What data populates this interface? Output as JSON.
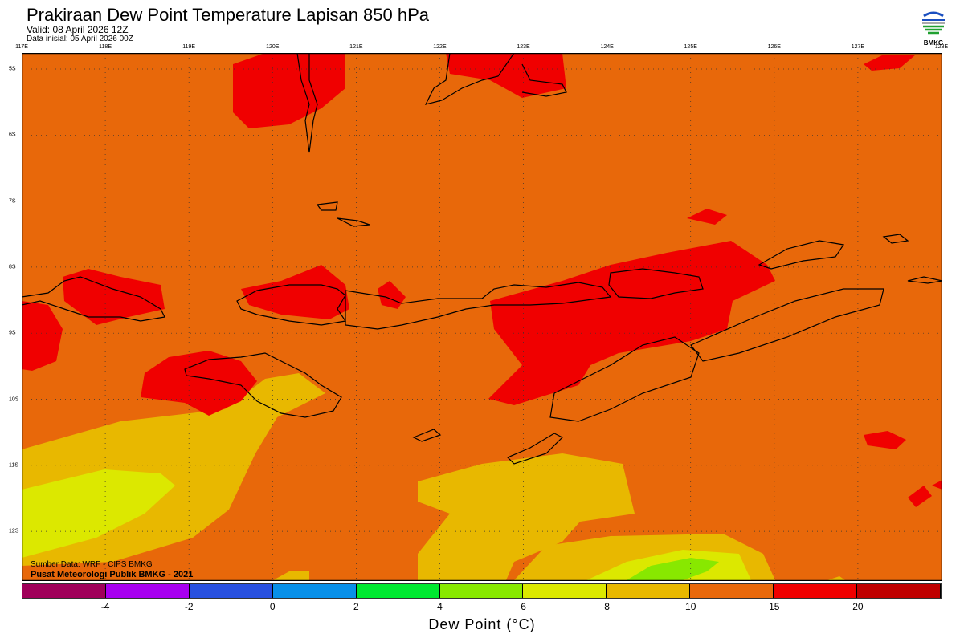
{
  "header": {
    "title": "Prakiraan Dew Point Temperature Lapisan 850 hPa",
    "valid": "Valid: 08 April 2026 12Z",
    "init": "Data inisial: 05 April 2026 00Z"
  },
  "logo": {
    "text": "BMKG"
  },
  "map": {
    "lon_labels": [
      "117E",
      "118E",
      "119E",
      "120E",
      "121E",
      "122E",
      "123E",
      "124E",
      "125E",
      "126E",
      "127E",
      "128E"
    ],
    "lat_labels": [
      "5S",
      "6S",
      "7S",
      "8S",
      "9S",
      "10S",
      "11S",
      "12S"
    ],
    "source": "Sumber Data: WRF - CIPS BMKG",
    "credit": "Pusat Meteorologi Publik BMKG - 2021"
  },
  "colorbar": {
    "label": "Dew Point (°C)",
    "ticks": [
      "-4",
      "-2",
      "0",
      "2",
      "4",
      "6",
      "8",
      "10",
      "15",
      "20"
    ],
    "colors": [
      "#a0005a",
      "#a800f0",
      "#2850e0",
      "#0890e8",
      "#00e830",
      "#88e800",
      "#dce800",
      "#e8b800",
      "#e8680a",
      "#f00000",
      "#c00000"
    ]
  }
}
